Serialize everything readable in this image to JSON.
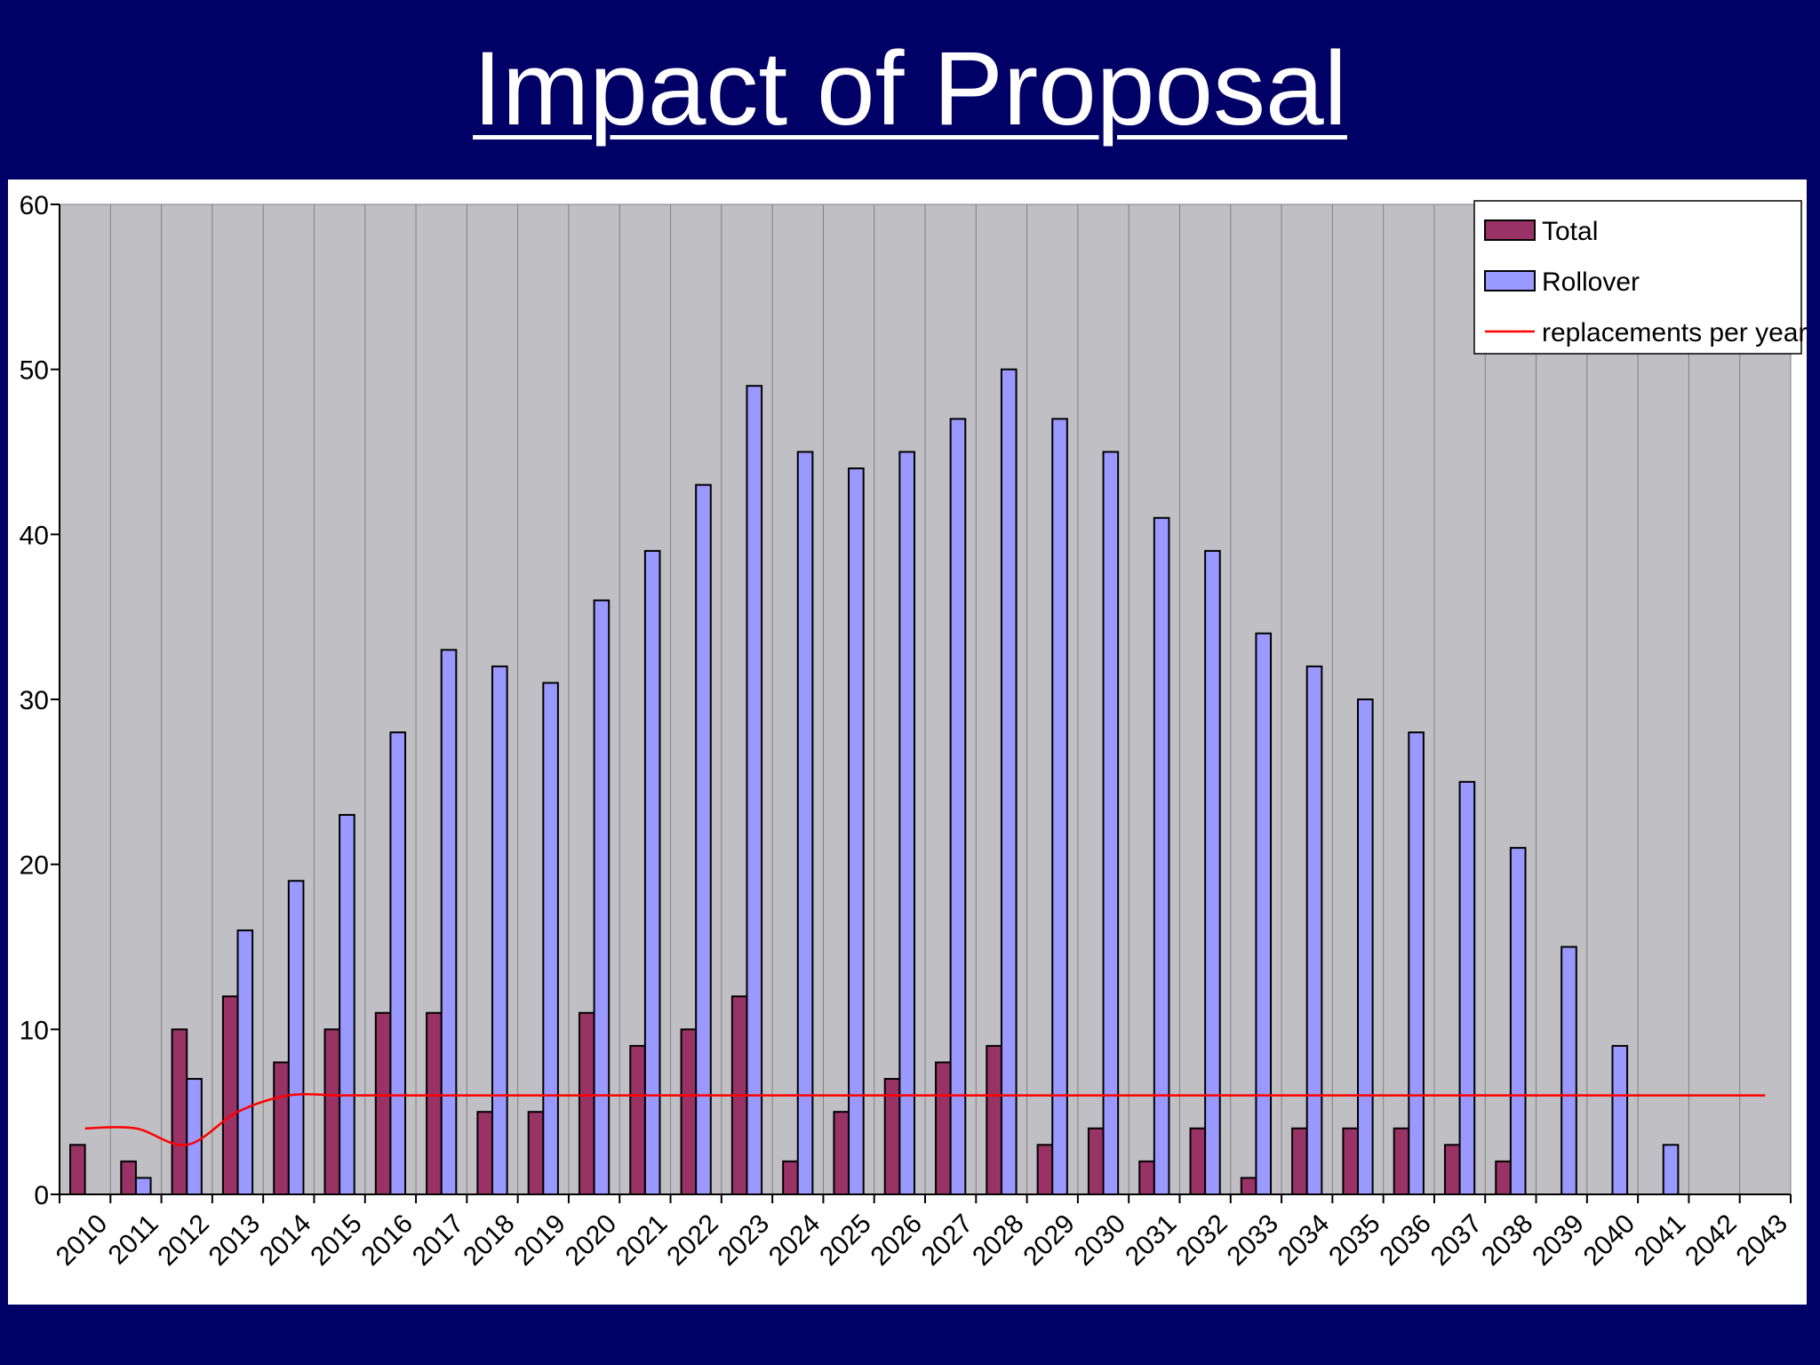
{
  "slide": {
    "title": "Impact of Proposal"
  },
  "colors": {
    "background": "#000066",
    "plot_area": "#c0bfc4",
    "total": "#993366",
    "rollover": "#9999ff",
    "replacements": "#ff0000"
  },
  "chart_data": {
    "type": "bar",
    "title": "",
    "xlabel": "",
    "ylabel": "",
    "ylim": [
      0,
      60
    ],
    "yticks": [
      0,
      10,
      20,
      30,
      40,
      50,
      60
    ],
    "grid": "vertical",
    "legend_position": "top-right",
    "categories": [
      "2010",
      "2011",
      "2012",
      "2013",
      "2014",
      "2015",
      "2016",
      "2017",
      "2018",
      "2019",
      "2020",
      "2021",
      "2022",
      "2023",
      "2024",
      "2025",
      "2026",
      "2027",
      "2028",
      "2029",
      "2030",
      "2031",
      "2032",
      "2033",
      "2034",
      "2035",
      "2036",
      "2037",
      "2038",
      "2039",
      "2040",
      "2041",
      "2042",
      "2043"
    ],
    "series": [
      {
        "name": "Total",
        "type": "bar",
        "values": [
          3,
          2,
          10,
          12,
          8,
          10,
          11,
          11,
          5,
          5,
          11,
          9,
          10,
          12,
          2,
          5,
          7,
          8,
          9,
          3,
          4,
          2,
          4,
          1,
          4,
          4,
          4,
          3,
          2,
          0,
          0,
          0,
          0,
          0
        ]
      },
      {
        "name": "Rollover",
        "type": "bar",
        "values": [
          0,
          1,
          7,
          16,
          19,
          23,
          28,
          33,
          32,
          31,
          36,
          39,
          43,
          49,
          45,
          44,
          45,
          47,
          50,
          47,
          45,
          41,
          39,
          34,
          32,
          30,
          28,
          25,
          21,
          15,
          9,
          3,
          0,
          0
        ]
      },
      {
        "name": "replacements per year",
        "type": "line",
        "values": [
          4,
          4,
          3,
          5,
          6,
          6,
          6,
          6,
          6,
          6,
          6,
          6,
          6,
          6,
          6,
          6,
          6,
          6,
          6,
          6,
          6,
          6,
          6,
          6,
          6,
          6,
          6,
          6,
          6,
          6,
          6,
          6,
          6,
          6
        ]
      }
    ]
  }
}
